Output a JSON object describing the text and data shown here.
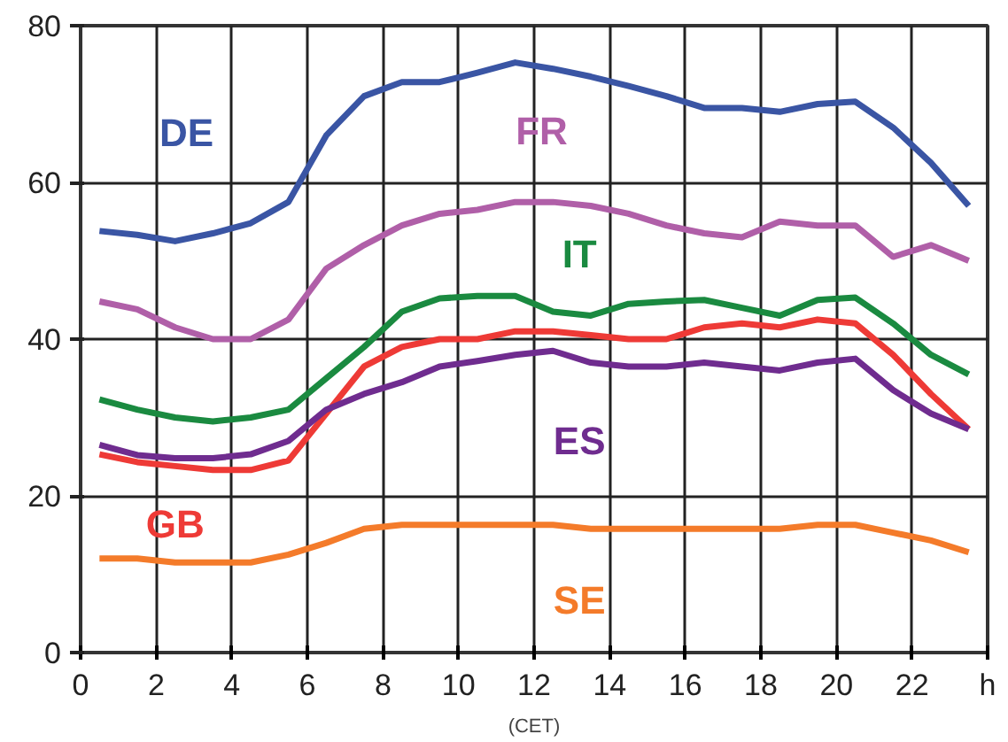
{
  "chart_data": {
    "type": "line",
    "xlabel": "(CET)",
    "x": [
      0.5,
      1.5,
      2.5,
      3.5,
      4.5,
      5.5,
      6.5,
      7.5,
      8.5,
      9.5,
      10.5,
      11.5,
      12.5,
      13.5,
      14.5,
      15.5,
      16.5,
      17.5,
      18.5,
      19.5,
      20.5,
      21.5,
      22.5,
      23.5
    ],
    "series": [
      {
        "name": "DE",
        "color": "#3a55a4",
        "values": [
          53.8,
          53.3,
          52.5,
          53.5,
          54.8,
          57.5,
          66,
          71,
          72.8,
          72.8,
          74,
          75.3,
          74.5,
          73.5,
          72.3,
          71,
          69.5,
          69.5,
          69,
          70,
          70.3,
          67,
          62.5,
          57
        ]
      },
      {
        "name": "FR",
        "color": "#b05fa8",
        "values": [
          44.8,
          43.8,
          41.5,
          40,
          40,
          42.5,
          49,
          52,
          54.5,
          56,
          56.5,
          57.5,
          57.5,
          57,
          56,
          54.5,
          53.5,
          53,
          55,
          54.5,
          54.5,
          50.5,
          52,
          50
        ]
      },
      {
        "name": "IT",
        "color": "#1a8a40",
        "values": [
          32.3,
          31,
          30,
          29.5,
          30,
          31,
          35,
          39,
          43.5,
          45.2,
          45.5,
          45.5,
          43.5,
          43,
          44.5,
          44.8,
          45,
          44,
          43,
          45,
          45.3,
          42,
          38,
          35.5
        ]
      },
      {
        "name": "GB",
        "color": "#ee3a36",
        "values": [
          25.3,
          24.3,
          23.8,
          23.3,
          23.3,
          24.5,
          30.5,
          36.5,
          39,
          40,
          40,
          41,
          41,
          40.5,
          40,
          40,
          41.5,
          42,
          41.5,
          42.5,
          42,
          38,
          33,
          28.5
        ]
      },
      {
        "name": "ES",
        "color": "#6f2c8f",
        "values": [
          26.5,
          25.2,
          24.8,
          24.8,
          25.3,
          27,
          31,
          33,
          34.5,
          36.5,
          37.2,
          38,
          38.5,
          37,
          36.5,
          36.5,
          37,
          36.5,
          36,
          37,
          37.5,
          33.5,
          30.5,
          28.5
        ]
      },
      {
        "name": "SE",
        "color": "#f47b2a",
        "values": [
          12,
          12,
          11.5,
          11.5,
          11.5,
          12.5,
          14,
          15.8,
          16.3,
          16.3,
          16.3,
          16.3,
          16.3,
          15.8,
          15.8,
          15.8,
          15.8,
          15.8,
          15.8,
          16.3,
          16.3,
          15.3,
          14.3,
          12.8
        ]
      }
    ],
    "xlim": [
      0,
      24
    ],
    "xticks": [
      0,
      2,
      4,
      6,
      8,
      10,
      12,
      14,
      16,
      18,
      20,
      22,
      {
        "value": 24,
        "label": "h"
      }
    ],
    "ylim": [
      0,
      80
    ],
    "yticks": [
      0,
      20,
      40,
      60,
      80
    ],
    "grid": true,
    "legend": false,
    "marker": "none",
    "line_style": "solid"
  }
}
